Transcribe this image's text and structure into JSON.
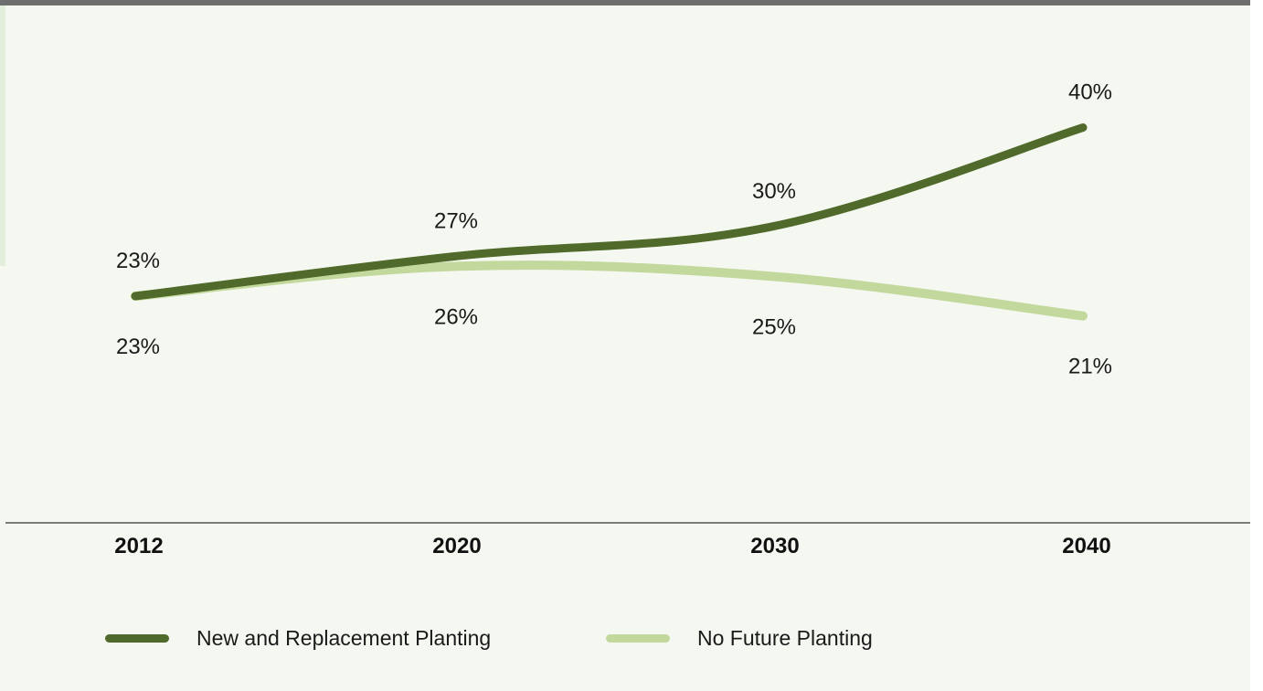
{
  "chart_data": {
    "type": "line",
    "x": [
      "2012",
      "2020",
      "2030",
      "2040"
    ],
    "series": [
      {
        "name": "New and Replacement Planting",
        "values": [
          23,
          27,
          30,
          40
        ],
        "labels": [
          "23%",
          "27%",
          "30%",
          "40%"
        ],
        "color": "#4f6a2a"
      },
      {
        "name": "No Future Planting",
        "values": [
          23,
          26,
          25,
          21
        ],
        "labels": [
          "23%",
          "26%",
          "25%",
          "21%"
        ],
        "color": "#c3d89d"
      }
    ],
    "title": "",
    "xlabel": "",
    "ylabel": "",
    "grid": false,
    "legend": "bottom"
  }
}
